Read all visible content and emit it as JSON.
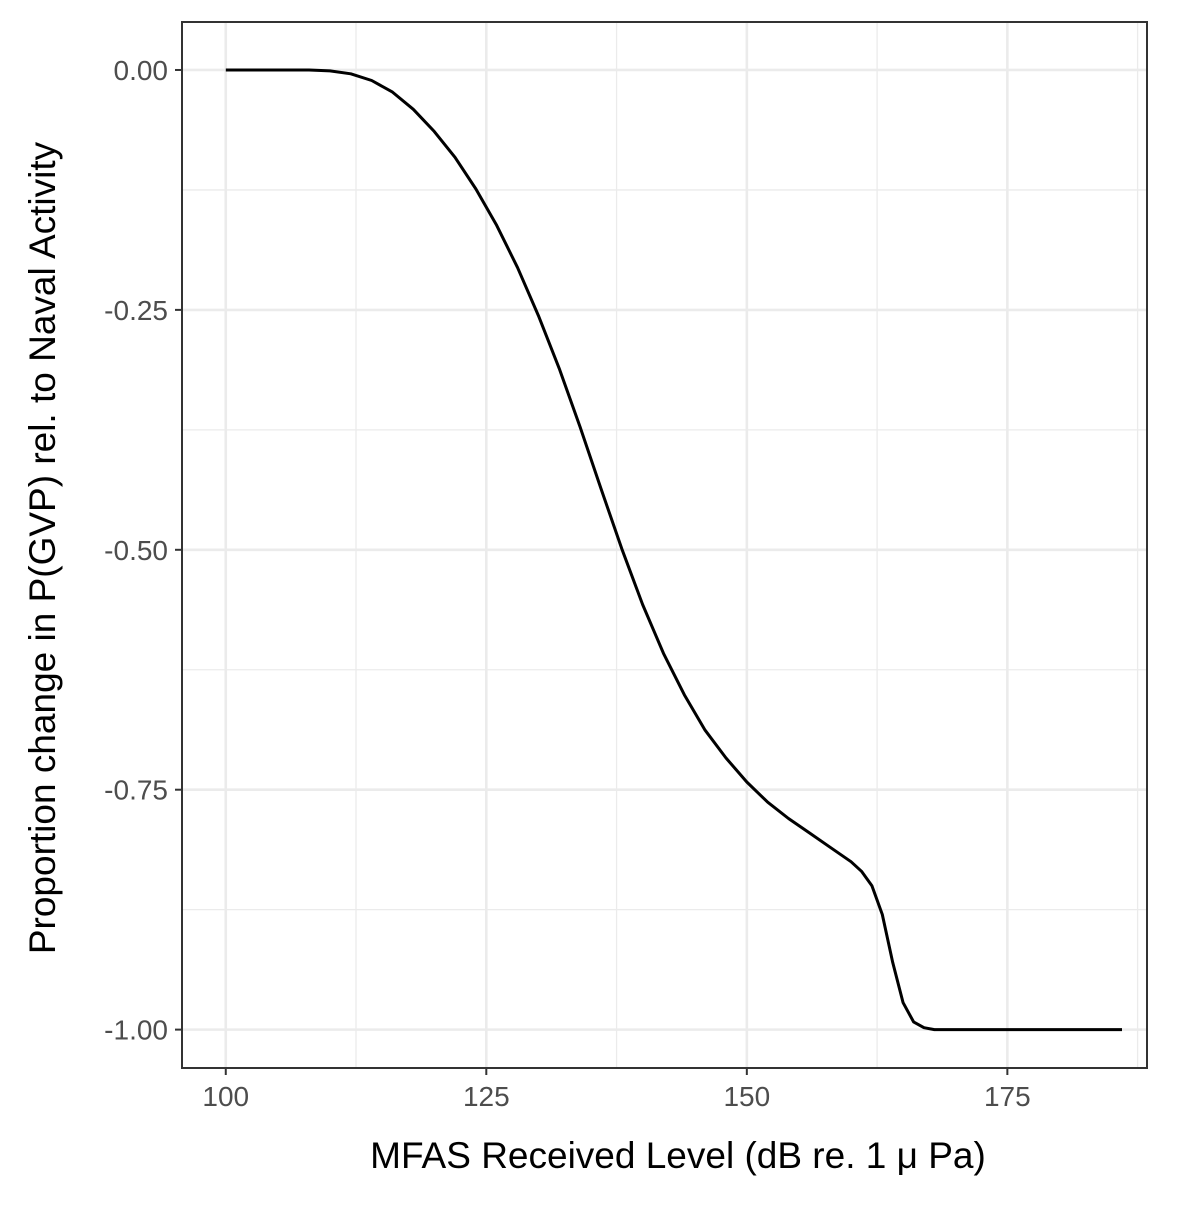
{
  "chart_data": {
    "type": "line",
    "title": "",
    "xlabel": "MFAS Received Level (dB re. 1 μ Pa)",
    "ylabel": "Proportion change in P(GVP) rel. to Naval Activity",
    "xlim": [
      95.8,
      188.4
    ],
    "ylim": [
      -1.04,
      0.05
    ],
    "x_ticks": [
      100,
      125,
      150,
      175
    ],
    "x_tick_labels": [
      "100",
      "125",
      "150",
      "175"
    ],
    "y_ticks": [
      0,
      -0.25,
      -0.5,
      -0.75,
      -1
    ],
    "y_tick_labels": [
      "0.00",
      "-0.25",
      "-0.50",
      "-0.75",
      "-1.00"
    ],
    "grid": true,
    "series": [
      {
        "name": "",
        "color": "#000000",
        "x": [
          100,
          105,
          108,
          110,
          112,
          114,
          116,
          118,
          120,
          122,
          124,
          126,
          128,
          130,
          132,
          134,
          136,
          138,
          140,
          142,
          144,
          146,
          148,
          150,
          152,
          154,
          156,
          158,
          160,
          161,
          162,
          163,
          164,
          165,
          166,
          167,
          168,
          170,
          175,
          180,
          186
        ],
        "y": [
          0,
          0,
          0,
          -0.001,
          -0.004,
          -0.011,
          -0.023,
          -0.041,
          -0.064,
          -0.091,
          -0.124,
          -0.162,
          -0.206,
          -0.256,
          -0.311,
          -0.372,
          -0.436,
          -0.499,
          -0.557,
          -0.608,
          -0.651,
          -0.688,
          -0.717,
          -0.742,
          -0.763,
          -0.78,
          -0.795,
          -0.81,
          -0.825,
          -0.835,
          -0.85,
          -0.88,
          -0.93,
          -0.972,
          -0.992,
          -0.998,
          -1,
          -1,
          -1,
          -1,
          -1
        ]
      }
    ]
  },
  "colors": {
    "line": "#000000",
    "grid": "#ebebeb",
    "panel_border": "#333333",
    "tick_label": "#4d4d4d"
  }
}
